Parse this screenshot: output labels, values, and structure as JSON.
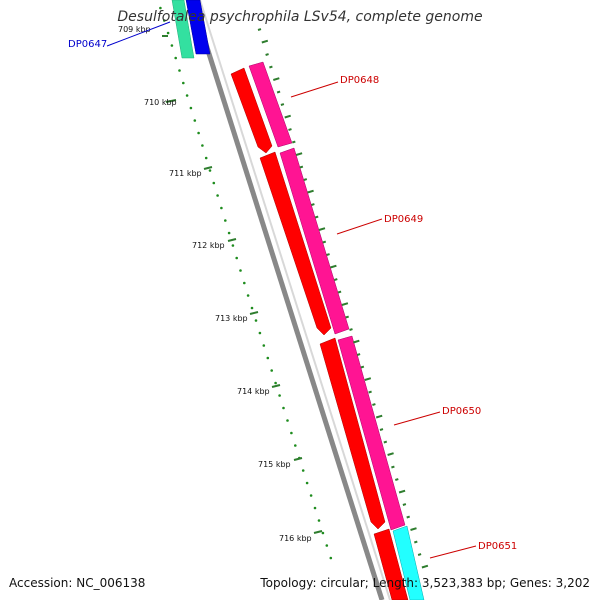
{
  "title": "Desulfotalea psychrophila LSv54, complete genome",
  "footer": {
    "accession": "Accession: NC_006138",
    "summary": "Topology: circular; Length: 3,523,383 bp; Genes: 3,202"
  },
  "ticks": [
    {
      "label": "709 kbp"
    },
    {
      "label": "710 kbp"
    },
    {
      "label": "711 kbp"
    },
    {
      "label": "712 kbp"
    },
    {
      "label": "713 kbp"
    },
    {
      "label": "714 kbp"
    },
    {
      "label": "715 kbp"
    },
    {
      "label": "716 kbp"
    }
  ],
  "genes": [
    {
      "label": "DP0647",
      "color": "#0000cc"
    },
    {
      "label": "DP0648",
      "color": "#cc0000"
    },
    {
      "label": "DP0649",
      "color": "#cc0000"
    },
    {
      "label": "DP0650",
      "color": "#cc0000"
    },
    {
      "label": "DP0651",
      "color": "#cc0000"
    }
  ],
  "colors": {
    "backbone": "#888888",
    "cds_forward": "#ff0000",
    "cds_reverse": "#ff1493",
    "gc_dots": "#1e8c1e",
    "gc_ticks": "#2e7d2e",
    "gene_teal": "#33e0a0",
    "gene_blue": "#0000ee",
    "gene_cyan": "#22ffff"
  }
}
